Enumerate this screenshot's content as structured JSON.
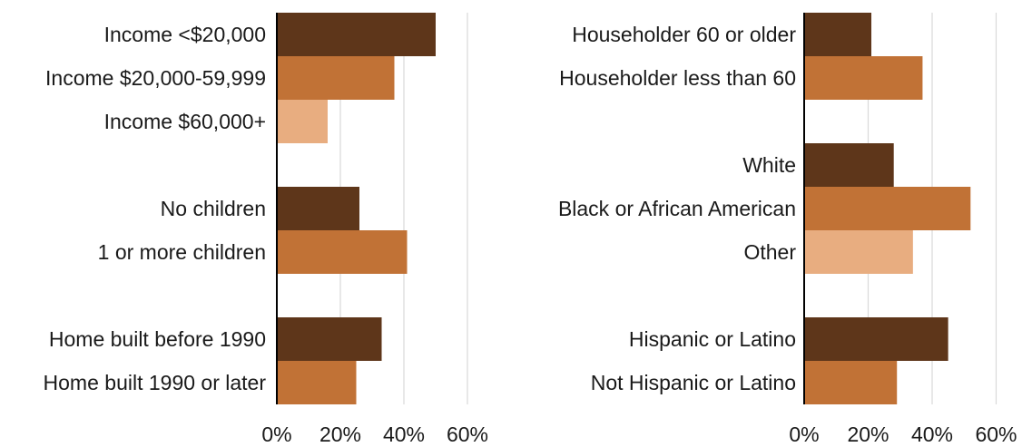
{
  "colors": {
    "dark": "#5e361a",
    "medium": "#c17236",
    "light": "#e8ad80",
    "axis": "#000000",
    "grid": "#d9d9d9"
  },
  "chart_data": [
    {
      "type": "bar",
      "orientation": "horizontal",
      "xlim": [
        0,
        60
      ],
      "x_ticks": [
        "0%",
        "20%",
        "40%",
        "60%"
      ],
      "grid": true,
      "groups": [
        {
          "bars": [
            {
              "label": "Income <$20,000",
              "value": 50,
              "shade": "dark"
            },
            {
              "label": "Income $20,000-59,999",
              "value": 37,
              "shade": "medium"
            },
            {
              "label": "Income $60,000+",
              "value": 16,
              "shade": "light"
            }
          ]
        },
        {
          "bars": [
            {
              "label": "No children",
              "value": 26,
              "shade": "dark"
            },
            {
              "label": "1 or more children",
              "value": 41,
              "shade": "medium"
            }
          ]
        },
        {
          "bars": [
            {
              "label": "Home built before 1990",
              "value": 33,
              "shade": "dark"
            },
            {
              "label": "Home built 1990 or later",
              "value": 25,
              "shade": "medium"
            }
          ]
        }
      ]
    },
    {
      "type": "bar",
      "orientation": "horizontal",
      "xlim": [
        0,
        60
      ],
      "x_ticks": [
        "0%",
        "20%",
        "40%",
        "60%"
      ],
      "grid": true,
      "groups": [
        {
          "bars": [
            {
              "label": "Householder 60 or older",
              "value": 21,
              "shade": "dark"
            },
            {
              "label": "Householder less than 60",
              "value": 37,
              "shade": "medium"
            }
          ]
        },
        {
          "bars": [
            {
              "label": "White",
              "value": 28,
              "shade": "dark"
            },
            {
              "label": "Black or African American",
              "value": 52,
              "shade": "medium"
            },
            {
              "label": "Other",
              "value": 34,
              "shade": "light"
            }
          ]
        },
        {
          "bars": [
            {
              "label": "Hispanic or Latino",
              "value": 45,
              "shade": "dark"
            },
            {
              "label": "Not Hispanic or Latino",
              "value": 29,
              "shade": "medium"
            }
          ]
        }
      ]
    }
  ]
}
